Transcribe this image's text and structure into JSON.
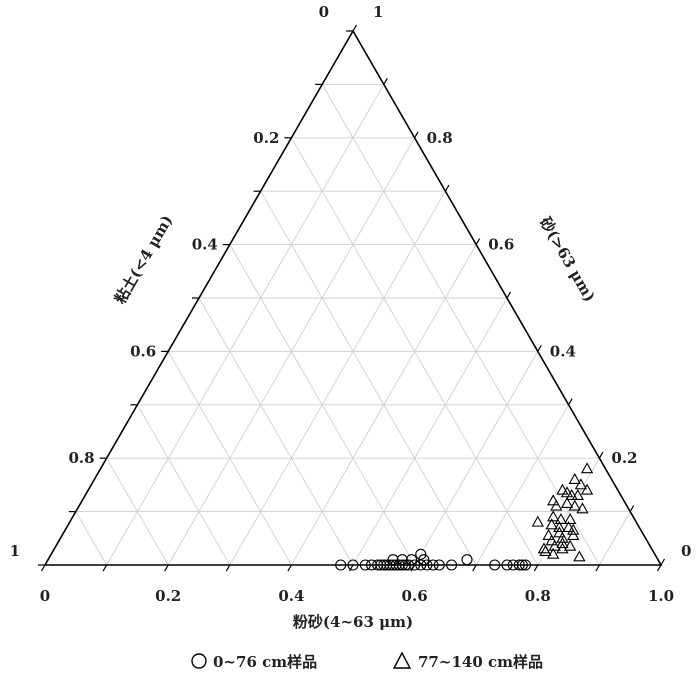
{
  "chart_data": {
    "type": "ternary-scatter",
    "axes": {
      "bottom": {
        "label": "粉砂(4~63 μm)",
        "ticks": [
          "0",
          "0.2",
          "0.4",
          "0.6",
          "0.8",
          "1.0"
        ]
      },
      "left": {
        "label": "粘土(<4 μm)",
        "ticks": [
          "0.2",
          "0.4",
          "0.6",
          "0.8"
        ],
        "end_labels": [
          "1",
          "0"
        ]
      },
      "right": {
        "label": "砂(>63 μm)",
        "ticks": [
          "0.8",
          "0.6",
          "0.4",
          "0.2"
        ],
        "end_labels": [
          "1",
          "0"
        ]
      }
    },
    "grid": true,
    "grid_step": 0.1,
    "legend_position": "bottom",
    "series": [
      {
        "name": "0~76 cm样品",
        "marker": "circle",
        "points": [
          {
            "silt": 0.48,
            "sand": 0.0
          },
          {
            "silt": 0.5,
            "sand": 0.0
          },
          {
            "silt": 0.52,
            "sand": 0.0
          },
          {
            "silt": 0.53,
            "sand": 0.0
          },
          {
            "silt": 0.54,
            "sand": 0.0
          },
          {
            "silt": 0.545,
            "sand": 0.0
          },
          {
            "silt": 0.55,
            "sand": 0.0
          },
          {
            "silt": 0.555,
            "sand": 0.0
          },
          {
            "silt": 0.56,
            "sand": 0.0
          },
          {
            "silt": 0.565,
            "sand": 0.0
          },
          {
            "silt": 0.57,
            "sand": 0.0
          },
          {
            "silt": 0.575,
            "sand": 0.0
          },
          {
            "silt": 0.58,
            "sand": 0.0
          },
          {
            "silt": 0.585,
            "sand": 0.0
          },
          {
            "silt": 0.59,
            "sand": 0.0
          },
          {
            "silt": 0.6,
            "sand": 0.0
          },
          {
            "silt": 0.61,
            "sand": 0.0
          },
          {
            "silt": 0.62,
            "sand": 0.0
          },
          {
            "silt": 0.63,
            "sand": 0.0
          },
          {
            "silt": 0.64,
            "sand": 0.0
          },
          {
            "silt": 0.66,
            "sand": 0.0
          },
          {
            "silt": 0.73,
            "sand": 0.0
          },
          {
            "silt": 0.75,
            "sand": 0.0
          },
          {
            "silt": 0.76,
            "sand": 0.0
          },
          {
            "silt": 0.77,
            "sand": 0.0
          },
          {
            "silt": 0.775,
            "sand": 0.0
          },
          {
            "silt": 0.78,
            "sand": 0.0
          },
          {
            "silt": 0.56,
            "sand": 0.01
          },
          {
            "silt": 0.575,
            "sand": 0.01
          },
          {
            "silt": 0.59,
            "sand": 0.01
          },
          {
            "silt": 0.61,
            "sand": 0.01
          },
          {
            "silt": 0.68,
            "sand": 0.01
          },
          {
            "silt": 0.6,
            "sand": 0.02
          }
        ]
      },
      {
        "name": "77~140 cm样品",
        "marker": "triangle",
        "points": [
          {
            "silt": 0.79,
            "sand": 0.18
          },
          {
            "silt": 0.78,
            "sand": 0.16
          },
          {
            "silt": 0.795,
            "sand": 0.15
          },
          {
            "silt": 0.77,
            "sand": 0.14
          },
          {
            "silt": 0.78,
            "sand": 0.135
          },
          {
            "silt": 0.79,
            "sand": 0.13
          },
          {
            "silt": 0.8,
            "sand": 0.13
          },
          {
            "silt": 0.81,
            "sand": 0.14
          },
          {
            "silt": 0.765,
            "sand": 0.12
          },
          {
            "silt": 0.775,
            "sand": 0.11
          },
          {
            "silt": 0.79,
            "sand": 0.115
          },
          {
            "silt": 0.805,
            "sand": 0.11
          },
          {
            "silt": 0.82,
            "sand": 0.105
          },
          {
            "silt": 0.78,
            "sand": 0.09
          },
          {
            "silt": 0.795,
            "sand": 0.085
          },
          {
            "silt": 0.81,
            "sand": 0.085
          },
          {
            "silt": 0.76,
            "sand": 0.08
          },
          {
            "silt": 0.785,
            "sand": 0.075
          },
          {
            "silt": 0.8,
            "sand": 0.07
          },
          {
            "silt": 0.815,
            "sand": 0.07
          },
          {
            "silt": 0.825,
            "sand": 0.065
          },
          {
            "silt": 0.805,
            "sand": 0.06
          },
          {
            "silt": 0.79,
            "sand": 0.055
          },
          {
            "silt": 0.815,
            "sand": 0.05
          },
          {
            "silt": 0.83,
            "sand": 0.055
          },
          {
            "silt": 0.8,
            "sand": 0.045
          },
          {
            "silt": 0.82,
            "sand": 0.04
          },
          {
            "silt": 0.81,
            "sand": 0.035
          },
          {
            "silt": 0.795,
            "sand": 0.03
          },
          {
            "silt": 0.825,
            "sand": 0.03
          },
          {
            "silt": 0.8,
            "sand": 0.025
          },
          {
            "silt": 0.815,
            "sand": 0.02
          },
          {
            "silt": 0.835,
            "sand": 0.035
          },
          {
            "silt": 0.86,
            "sand": 0.015
          }
        ]
      }
    ]
  }
}
